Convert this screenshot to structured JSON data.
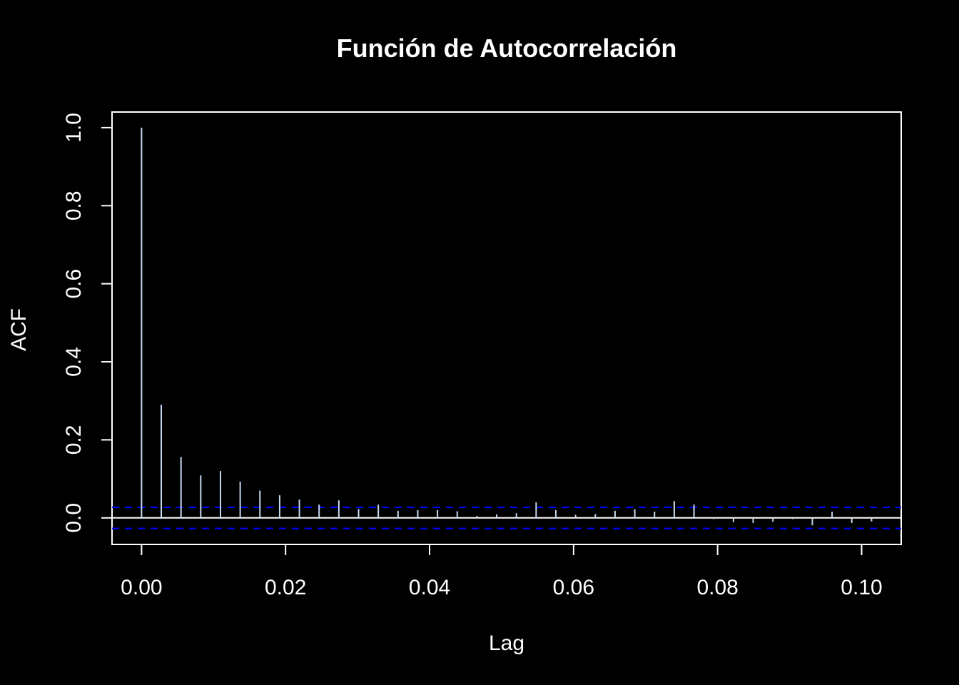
{
  "chart_data": {
    "type": "bar",
    "title": "Función de Autocorrelación",
    "xlabel": "Lag",
    "ylabel": "ACF",
    "xlim": [
      -0.0041,
      0.1055
    ],
    "ylim": [
      -0.068,
      1.04
    ],
    "x_ticks": [
      "0.00",
      "0.02",
      "0.04",
      "0.06",
      "0.08",
      "0.10"
    ],
    "y_ticks": [
      "0.0",
      "0.2",
      "0.4",
      "0.6",
      "0.8",
      "1.0"
    ],
    "confidence_bound": 0.027,
    "x": [
      0.0,
      0.00274,
      0.00548,
      0.00822,
      0.01096,
      0.0137,
      0.01644,
      0.01918,
      0.02192,
      0.02466,
      0.0274,
      0.03014,
      0.03288,
      0.03562,
      0.03836,
      0.0411,
      0.04384,
      0.04658,
      0.04932,
      0.05206,
      0.0548,
      0.05754,
      0.06028,
      0.06302,
      0.06576,
      0.0685,
      0.07124,
      0.07398,
      0.07672,
      0.07946,
      0.0822,
      0.08494,
      0.08768,
      0.09042,
      0.09316,
      0.0959,
      0.09864,
      0.10138
    ],
    "values": [
      1.0,
      0.29,
      0.156,
      0.109,
      0.12,
      0.093,
      0.07,
      0.058,
      0.047,
      0.034,
      0.045,
      0.023,
      0.034,
      0.018,
      0.02,
      0.02,
      0.017,
      0.005,
      0.009,
      0.012,
      0.04,
      0.02,
      0.008,
      0.01,
      0.018,
      0.022,
      0.016,
      0.043,
      0.034,
      -0.003,
      -0.011,
      -0.013,
      -0.01,
      -0.003,
      -0.019,
      0.016,
      -0.013,
      -0.009
    ],
    "colors": {
      "background": "#000000",
      "axes": "#ffffff",
      "bars": "#c6d9f1",
      "confidence": "#0000ff"
    },
    "grid": false
  }
}
